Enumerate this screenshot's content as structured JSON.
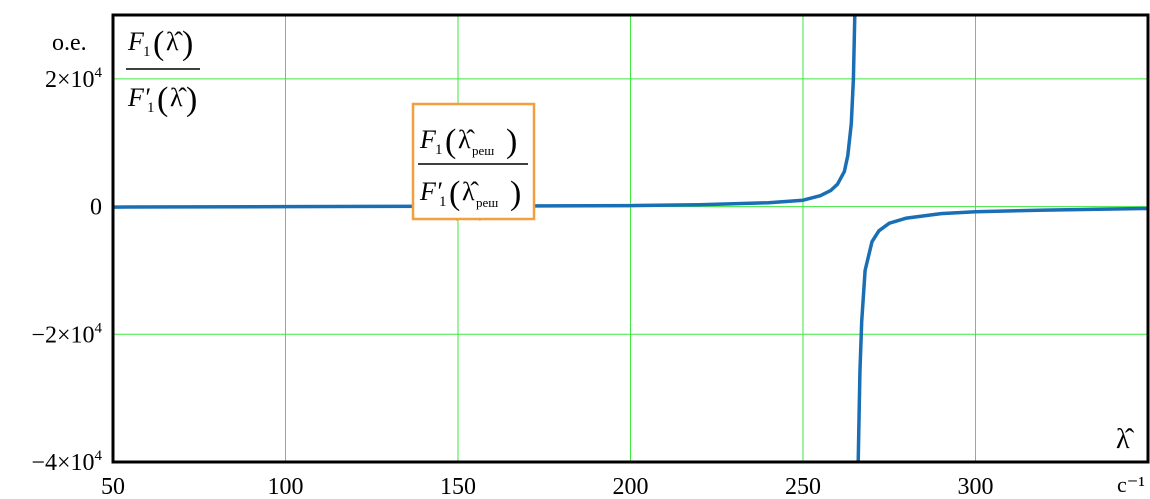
{
  "chart_data": {
    "type": "line",
    "title": "",
    "xlabel": "λ̂",
    "x_unit": "c⁻¹",
    "y_unit": "o.e.",
    "xlim": [
      50,
      350
    ],
    "ylim": [
      -40000,
      30000
    ],
    "grid": true,
    "x_ticks": [
      {
        "value": 50,
        "label": "50"
      },
      {
        "value": 100,
        "label": "100"
      },
      {
        "value": 150,
        "label": "150"
      },
      {
        "value": 200,
        "label": "200"
      },
      {
        "value": 250,
        "label": "250"
      },
      {
        "value": 300,
        "label": "300"
      }
    ],
    "y_ticks": [
      {
        "value": 20000,
        "mantissa": "2×10",
        "exp": "4"
      },
      {
        "value": 0,
        "mantissa": "0",
        "exp": ""
      },
      {
        "value": -20000,
        "mantissa": "−2×10",
        "exp": "4"
      },
      {
        "value": -40000,
        "mantissa": "−4×10",
        "exp": "4"
      }
    ],
    "series": [
      {
        "color": "#1a6fb4",
        "pole": 265.5,
        "branches": [
          [
            [
              50,
              -80
            ],
            [
              100,
              0
            ],
            [
              150,
              60
            ],
            [
              200,
              150
            ],
            [
              220,
              300
            ],
            [
              240,
              600
            ],
            [
              250,
              1000
            ],
            [
              255,
              1700
            ],
            [
              258,
              2500
            ],
            [
              260,
              3500
            ],
            [
              262,
              5500
            ],
            [
              263,
              8000
            ],
            [
              264,
              13000
            ],
            [
              264.6,
              20000
            ],
            [
              265,
              30000
            ]
          ],
          [
            [
              266,
              -40000
            ],
            [
              266.5,
              -26000
            ],
            [
              267,
              -18000
            ],
            [
              268,
              -10000
            ],
            [
              270,
              -5500
            ],
            [
              272,
              -3800
            ],
            [
              275,
              -2600
            ],
            [
              280,
              -1800
            ],
            [
              290,
              -1100
            ],
            [
              300,
              -800
            ],
            [
              320,
              -550
            ],
            [
              350,
              -300
            ]
          ]
        ]
      }
    ],
    "solution_point": {
      "x": 153,
      "y": 0,
      "marker": "x",
      "color": "#f07c3c"
    },
    "annotations": {
      "y_axis_expr": {
        "num_F": "F",
        "num_sub": "1",
        "den_F": "F′",
        "den_sub": "1",
        "arg": "λ̂"
      },
      "solution_expr": {
        "num_F": "F",
        "num_sub": "1",
        "den_F": "F′",
        "den_sub": "1",
        "arg": "λ̂",
        "arg_sub": "реш",
        "border_color": "#f2a03d"
      }
    }
  }
}
